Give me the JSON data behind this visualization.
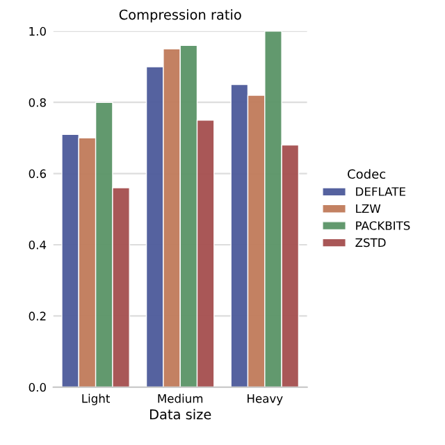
{
  "chart_data": {
    "type": "bar",
    "title": "Compression ratio",
    "xlabel": "Data size",
    "legend_title": "Codec",
    "categories": [
      "Light",
      "Medium",
      "Heavy"
    ],
    "series": [
      {
        "name": "DEFLATE",
        "color": "#4c5a9a",
        "values": [
          0.71,
          0.9,
          0.85
        ]
      },
      {
        "name": "LZW",
        "color": "#c07b5a",
        "values": [
          0.7,
          0.95,
          0.82
        ]
      },
      {
        "name": "PACKBITS",
        "color": "#5a9467",
        "values": [
          0.8,
          0.96,
          1.0
        ]
      },
      {
        "name": "ZSTD",
        "color": "#a54f4f",
        "values": [
          0.56,
          0.75,
          0.68
        ]
      }
    ],
    "ylim": [
      0,
      1.0
    ],
    "yticks": [
      {
        "value": 0,
        "label": "0.0"
      },
      {
        "value": 0.2,
        "label": "0.2"
      },
      {
        "value": 0.4,
        "label": "0.4"
      },
      {
        "value": 0.6,
        "label": "0.6"
      },
      {
        "value": 0.8,
        "label": "0.8"
      },
      {
        "value": 1.0,
        "label": "1.0"
      }
    ],
    "grid": "y",
    "legend": "right"
  }
}
